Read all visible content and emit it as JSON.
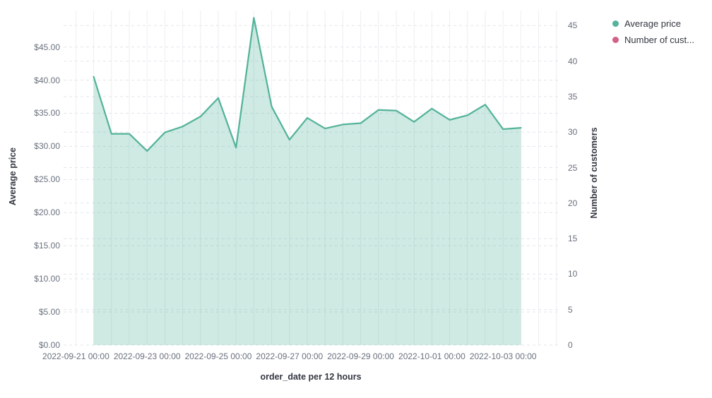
{
  "chart_data": {
    "type": "area",
    "title": "",
    "x_axis": {
      "title": "order_date per 12 hours",
      "tick_labels": [
        "2022-09-21 00:00",
        "2022-09-23 00:00",
        "2022-09-25 00:00",
        "2022-09-27 00:00",
        "2022-09-29 00:00",
        "2022-10-01 00:00",
        "2022-10-03 00:00"
      ]
    },
    "y_axis_left": {
      "title": "Average price",
      "tick_labels": [
        "$0.00",
        "$5.00",
        "$10.00",
        "$15.00",
        "$20.00",
        "$25.00",
        "$30.00",
        "$35.00",
        "$40.00",
        "$45.00"
      ],
      "min": 0,
      "max": 45
    },
    "y_axis_right": {
      "title": "Number of customers",
      "tick_labels": [
        "0",
        "5",
        "10",
        "15",
        "20",
        "25",
        "30",
        "35",
        "40",
        "45"
      ],
      "min": 0,
      "max": 45
    },
    "grid": {
      "horizontal": "dashed",
      "vertical": "solid"
    },
    "legend": {
      "position": "top-right",
      "items": [
        {
          "label": "Average price",
          "color": "#54B399"
        },
        {
          "label": "Number of cust...",
          "color": "#D36086"
        }
      ]
    },
    "series": [
      {
        "name": "Average price",
        "type": "area",
        "axis": "left",
        "color": "#54B399",
        "fill_opacity": 0.28,
        "x": [
          "2022-09-21 12:00",
          "2022-09-22 00:00",
          "2022-09-22 12:00",
          "2022-09-23 00:00",
          "2022-09-23 12:00",
          "2022-09-24 00:00",
          "2022-09-24 12:00",
          "2022-09-25 00:00",
          "2022-09-25 12:00",
          "2022-09-26 00:00",
          "2022-09-26 12:00",
          "2022-09-27 00:00",
          "2022-09-27 12:00",
          "2022-09-28 00:00",
          "2022-09-28 12:00",
          "2022-09-29 00:00",
          "2022-09-29 12:00",
          "2022-09-30 00:00",
          "2022-09-30 12:00",
          "2022-10-01 00:00",
          "2022-10-01 12:00",
          "2022-10-02 00:00",
          "2022-10-02 12:00",
          "2022-10-03 00:00",
          "2022-10-03 12:00"
        ],
        "values": [
          40.5,
          31.9,
          31.9,
          29.3,
          32.1,
          33.0,
          34.5,
          37.3,
          29.8,
          49.4,
          36.0,
          31.0,
          34.3,
          32.7,
          33.3,
          33.5,
          35.5,
          35.4,
          33.7,
          35.7,
          34.0,
          34.7,
          36.3,
          32.6,
          32.8
        ]
      },
      {
        "name": "Number of customers",
        "type": "line",
        "axis": "right",
        "color": "#D36086",
        "x": [],
        "values": []
      }
    ],
    "colors": {
      "grid_vertical": "#ecEEf2",
      "grid_horizontal": "#e2e5ea",
      "tick_label": "#69707d",
      "axis_title": "#343741"
    }
  }
}
